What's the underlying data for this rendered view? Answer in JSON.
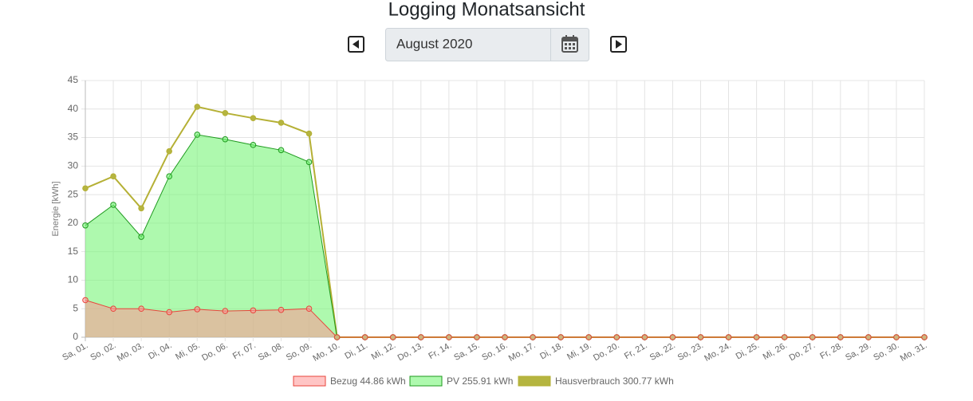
{
  "page_title": "Logging Monatsansicht",
  "date_input": "August 2020",
  "chart_data": {
    "type": "area",
    "y_label": "Energie [kWh]",
    "categories": [
      "Sa, 01.",
      "So, 02.",
      "Mo, 03.",
      "Di, 04.",
      "Mi, 05.",
      "Do, 06.",
      "Fr, 07.",
      "Sa, 08.",
      "So, 09.",
      "Mo, 10.",
      "Di, 11.",
      "Mi, 12.",
      "Do, 13.",
      "Fr, 14.",
      "Sa, 15.",
      "So, 16.",
      "Mo, 17.",
      "Di, 18.",
      "Mi, 19.",
      "Do, 20.",
      "Fr, 21.",
      "Sa, 22.",
      "So, 23.",
      "Mo, 24.",
      "Di, 25.",
      "Mi, 26.",
      "Do, 27.",
      "Fr, 28.",
      "Sa, 29.",
      "So, 30.",
      "Mo, 31."
    ],
    "series": [
      {
        "name": "Bezug 44.86 kWh",
        "color": "#e8453c",
        "fill": "rgba(255,150,150,0.55)",
        "values": [
          6.5,
          5.0,
          5.0,
          4.4,
          4.9,
          4.6,
          4.7,
          4.8,
          5.0,
          0,
          0,
          0,
          0,
          0,
          0,
          0,
          0,
          0,
          0,
          0,
          0,
          0,
          0,
          0,
          0,
          0,
          0,
          0,
          0,
          0,
          0
        ]
      },
      {
        "name": "PV 255.91 kWh",
        "color": "#1f9a1f",
        "fill": "rgba(120,245,120,0.6)",
        "values": [
          19.6,
          23.2,
          17.6,
          28.2,
          35.5,
          34.7,
          33.7,
          32.8,
          30.7,
          0,
          0,
          0,
          0,
          0,
          0,
          0,
          0,
          0,
          0,
          0,
          0,
          0,
          0,
          0,
          0,
          0,
          0,
          0,
          0,
          0,
          0
        ]
      },
      {
        "name": "Hausverbrauch 300.77 kWh",
        "color": "#b5b035",
        "fill": "#b5b540",
        "values": [
          26.1,
          28.2,
          22.6,
          32.6,
          40.4,
          39.3,
          38.4,
          37.6,
          35.7,
          0,
          0,
          0,
          0,
          0,
          0,
          0,
          0,
          0,
          0,
          0,
          0,
          0,
          0,
          0,
          0,
          0,
          0,
          0,
          0,
          0,
          0
        ]
      }
    ],
    "ylim": [
      0,
      45
    ],
    "yticks": [
      0,
      5,
      10,
      15,
      20,
      25,
      30,
      35,
      40,
      45
    ],
    "grid": true
  }
}
